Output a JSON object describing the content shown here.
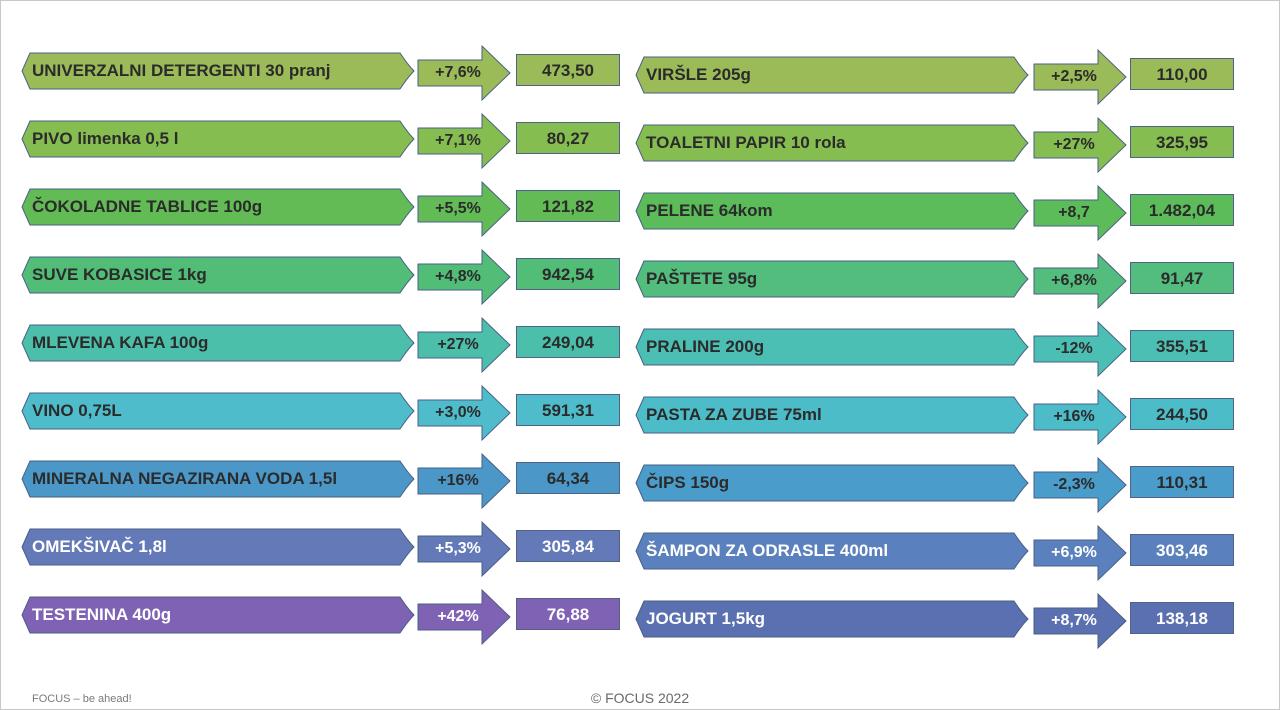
{
  "left_items": [
    {
      "name": "UNIVERZALNI DETERGENTI 30 pranj",
      "change": "+7,6%",
      "price": "473,50",
      "color": "#9bbb59",
      "text_color": "#2b2b2b"
    },
    {
      "name": "PIVO limenka 0,5 l",
      "change": "+7,1%",
      "price": "80,27",
      "color": "#86bd50",
      "text_color": "#2b2b2b"
    },
    {
      "name": "ČOKOLADNE TABLICE 100g",
      "change": "+5,5%",
      "price": "121,82",
      "color": "#62bb55",
      "text_color": "#2b2b2b"
    },
    {
      "name": "SUVE KOBASICE 1kg",
      "change": "+4,8%",
      "price": "942,54",
      "color": "#52bd76",
      "text_color": "#2b2b2b"
    },
    {
      "name": "MLEVENA KAFA 100g",
      "change": "+27%",
      "price": "249,04",
      "color": "#4cbfab",
      "text_color": "#2b2b2b"
    },
    {
      "name": "VINO 0,75L",
      "change": "+3,0%",
      "price": "591,31",
      "color": "#4ebccb",
      "text_color": "#2b2b2b"
    },
    {
      "name": "MINERALNA NEGAZIRANA VODA 1,5l",
      "change": "+16%",
      "price": "64,34",
      "color": "#4a97c8",
      "text_color": "#2b2b2b"
    },
    {
      "name": "OMEKŠIVAČ 1,8l",
      "change": "+5,3%",
      "price": "305,84",
      "color": "#6379b8",
      "text_color": "#ffffff"
    },
    {
      "name": "TESTENINA 400g",
      "change": "+42%",
      "price": "76,88",
      "color": "#8062b5",
      "text_color": "#ffffff"
    }
  ],
  "right_items": [
    {
      "name": "VIRŠLE  205g",
      "change": "+2,5%",
      "price": "110,00",
      "color": "#9bbb59",
      "text_color": "#2b2b2b"
    },
    {
      "name": "TOALETNI PAPIR 10 rola",
      "change": "+27%",
      "price": "325,95",
      "color": "#86bd50",
      "text_color": "#2b2b2b"
    },
    {
      "name": "PELENE 64kom",
      "change": "+8,7",
      "price": "1.482,04",
      "color": "#5cbc5a",
      "text_color": "#2b2b2b"
    },
    {
      "name": "PAŠTETE 95g",
      "change": "+6,8%",
      "price": "91,47",
      "color": "#52bd7c",
      "text_color": "#2b2b2b"
    },
    {
      "name": "PRALINE 200g",
      "change": "-12%",
      "price": "355,51",
      "color": "#4cbfb4",
      "text_color": "#2b2b2b"
    },
    {
      "name": "PASTA ZA ZUBE 75ml",
      "change": "+16%",
      "price": "244,50",
      "color": "#4dbcc9",
      "text_color": "#2b2b2b"
    },
    {
      "name": "ČIPS 150g",
      "change": "-2,3%",
      "price": "110,31",
      "color": "#4a9ccb",
      "text_color": "#2b2b2b"
    },
    {
      "name": "ŠAMPON ZA ODRASLE 400ml",
      "change": "+6,9%",
      "price": "303,46",
      "color": "#5a80bd",
      "text_color": "#ffffff"
    },
    {
      "name": "JOGURT 1,5kg",
      "change": "+8,7%",
      "price": "138,18",
      "color": "#5b70b0",
      "text_color": "#ffffff"
    }
  ],
  "footer": {
    "left": "FOCUS – be ahead!",
    "center": "© FOCUS 2022"
  }
}
